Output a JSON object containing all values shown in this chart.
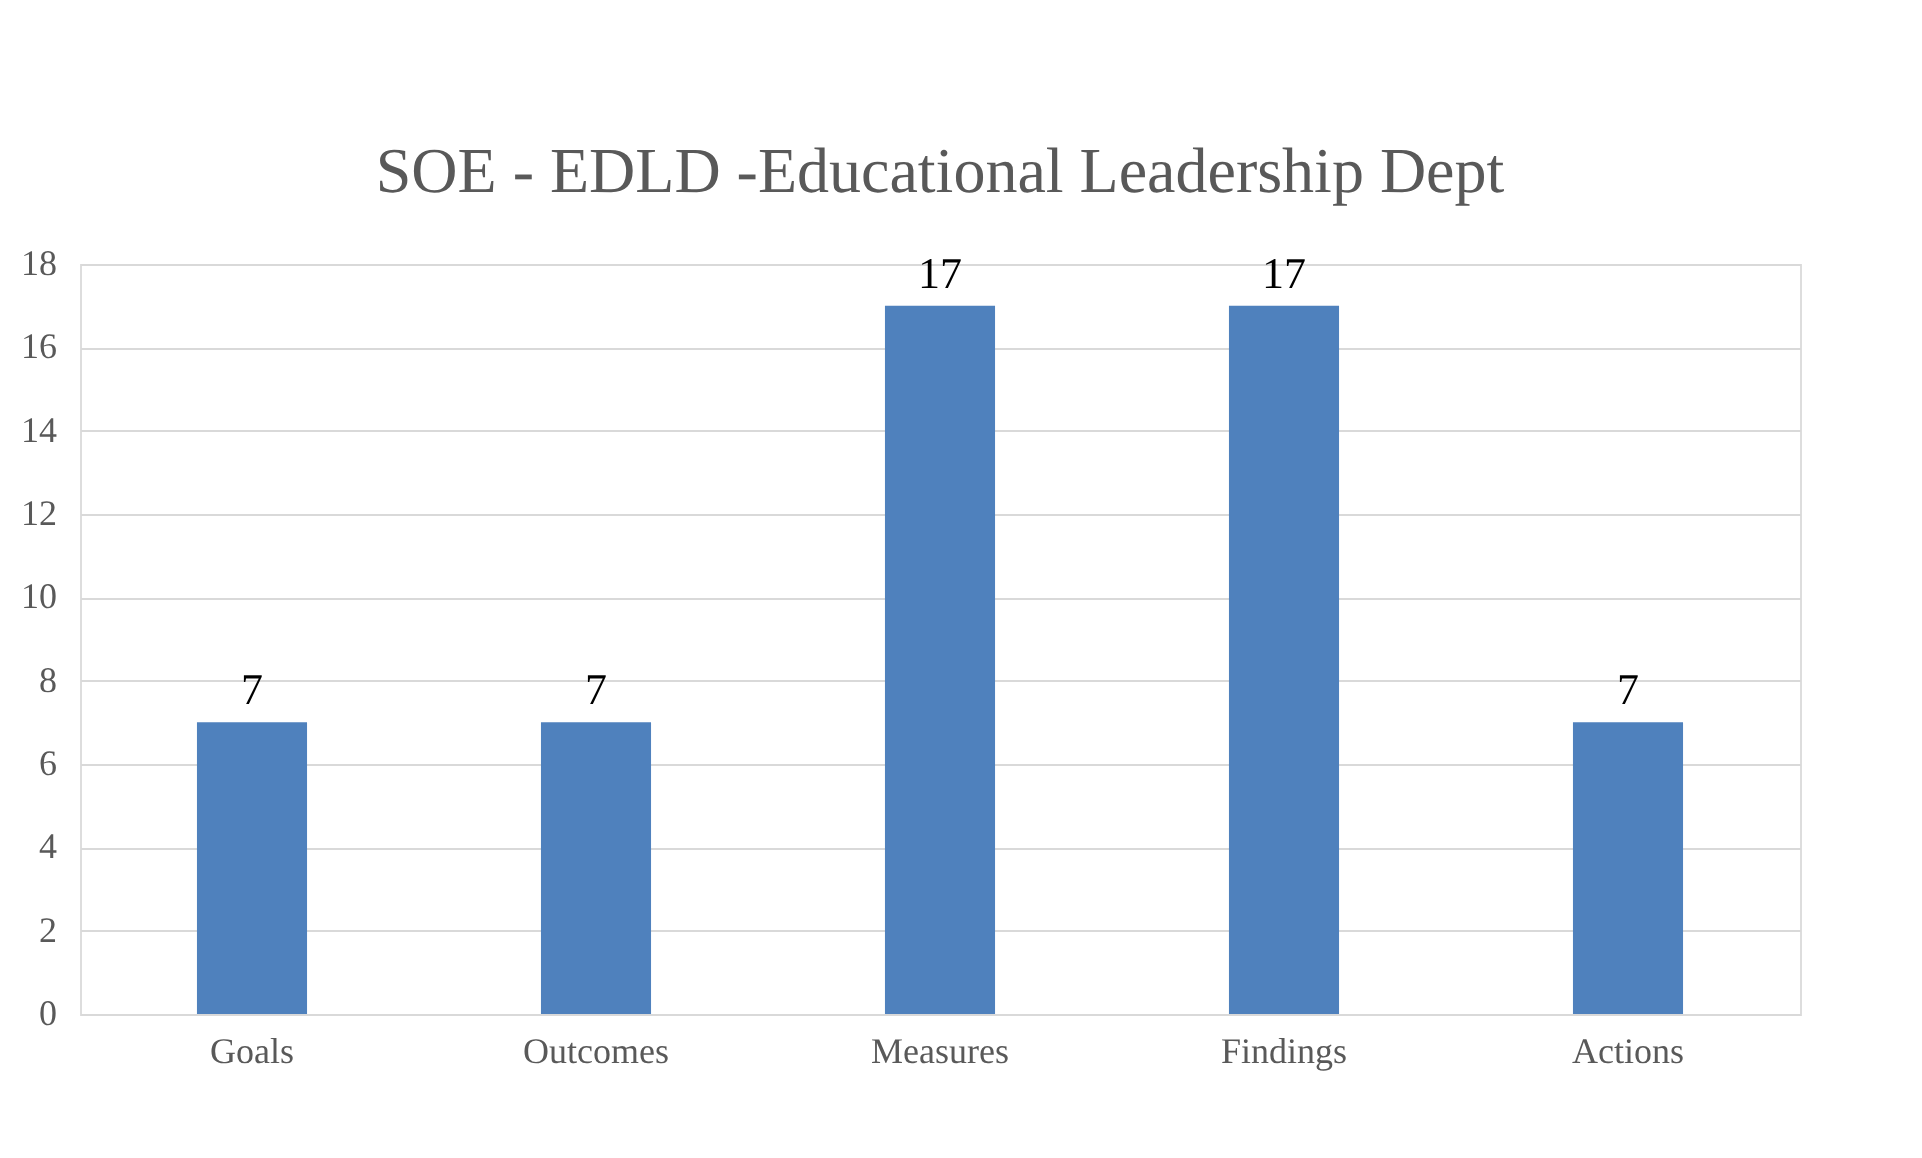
{
  "chart_data": {
    "type": "bar",
    "title": "SOE - EDLD -Educational Leadership Dept",
    "categories": [
      "Goals",
      "Outcomes",
      "Measures",
      "Findings",
      "Actions"
    ],
    "values": [
      7,
      7,
      17,
      17,
      7
    ],
    "color": "#4f81bd",
    "ylim": [
      0,
      18
    ],
    "yticks": [
      0,
      2,
      4,
      6,
      8,
      10,
      12,
      14,
      16,
      18
    ],
    "grid": "y",
    "data_labels": true
  }
}
